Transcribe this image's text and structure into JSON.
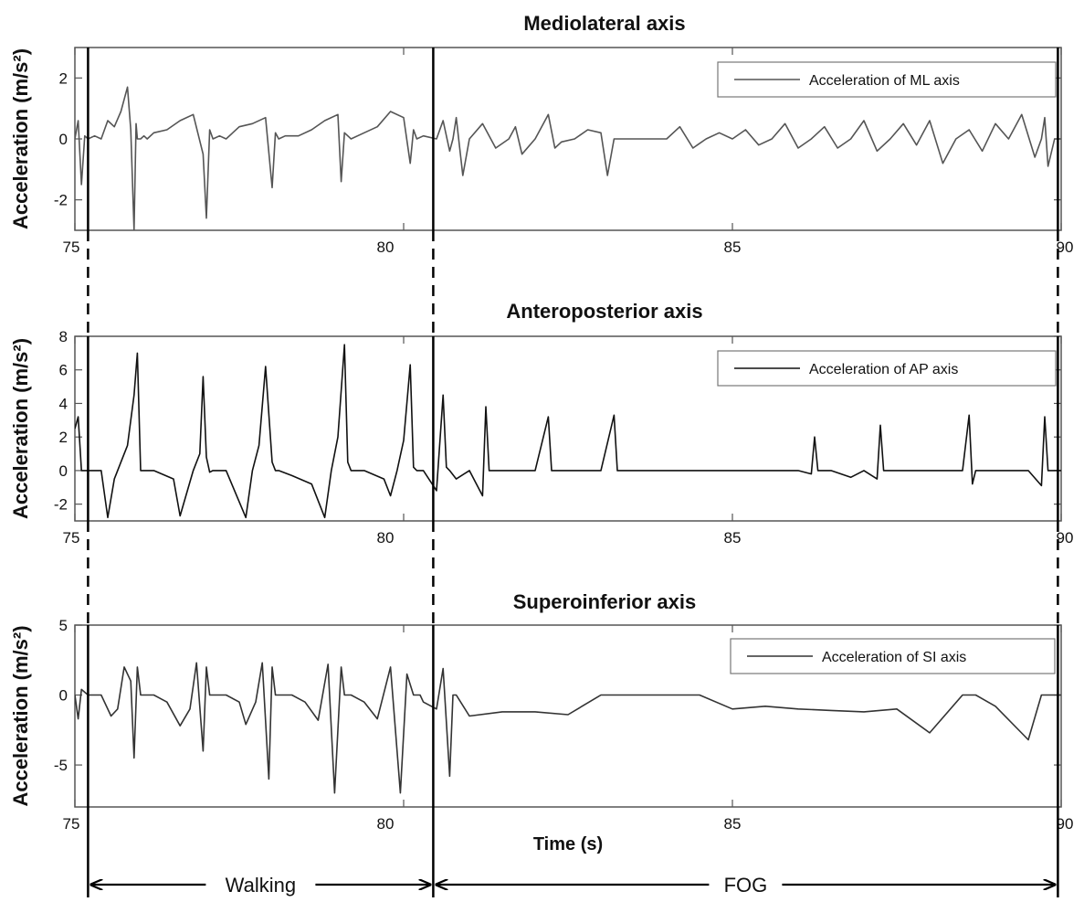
{
  "chart_data": [
    {
      "type": "line",
      "title": "Mediolateral axis",
      "ylabel": "Acceleration (m/s²)",
      "xlim": [
        75,
        90
      ],
      "ylim": [
        -3,
        3
      ],
      "xticks": [
        75,
        80,
        85,
        90
      ],
      "yticks": [
        -2,
        0,
        2
      ],
      "legend": "top-right",
      "series": [
        {
          "name": "Acceleration of ML axis",
          "color": "#555555",
          "x": [
            75.0,
            75.05,
            75.1,
            75.15,
            75.2,
            75.3,
            75.4,
            75.5,
            75.6,
            75.7,
            75.8,
            75.85,
            75.9,
            75.93,
            75.95,
            76.0,
            76.05,
            76.1,
            76.2,
            76.4,
            76.6,
            76.8,
            76.95,
            77.0,
            77.05,
            77.1,
            77.2,
            77.3,
            77.5,
            77.7,
            77.9,
            78.0,
            78.05,
            78.1,
            78.2,
            78.4,
            78.6,
            78.8,
            79.0,
            79.05,
            79.1,
            79.2,
            79.4,
            79.6,
            79.8,
            80.0,
            80.1,
            80.15,
            80.2,
            80.3,
            80.5,
            80.6,
            80.7,
            80.75,
            80.8,
            80.9,
            81.0,
            81.2,
            81.4,
            81.6,
            81.7,
            81.8,
            82.0,
            82.2,
            82.3,
            82.4,
            82.6,
            82.8,
            83.0,
            83.1,
            83.2,
            83.4,
            83.6,
            84.0,
            84.2,
            84.4,
            84.6,
            84.8,
            85.0,
            85.2,
            85.4,
            85.6,
            85.8,
            86.0,
            86.2,
            86.4,
            86.6,
            86.8,
            87.0,
            87.2,
            87.4,
            87.6,
            87.8,
            88.0,
            88.2,
            88.4,
            88.6,
            88.8,
            89.0,
            89.2,
            89.4,
            89.6,
            89.7,
            89.75,
            89.8,
            89.9,
            90.0
          ],
          "y": [
            0,
            0.6,
            -1.5,
            0.1,
            0,
            0.1,
            0,
            0.6,
            0.4,
            0.9,
            1.7,
            0.3,
            -3.0,
            0.5,
            0,
            0,
            0.1,
            0,
            0.2,
            0.3,
            0.6,
            0.8,
            -0.5,
            -2.6,
            0.3,
            0,
            0.1,
            0,
            0.4,
            0.5,
            0.7,
            -1.6,
            0.2,
            0,
            0.1,
            0.1,
            0.3,
            0.6,
            0.8,
            -1.4,
            0.2,
            0,
            0.2,
            0.4,
            0.9,
            0.7,
            -0.8,
            0.3,
            0,
            0.1,
            0,
            0.6,
            -0.4,
            0,
            0.7,
            -1.2,
            0,
            0.5,
            -0.3,
            0,
            0.4,
            -0.5,
            0,
            0.8,
            -0.3,
            -0.1,
            0,
            0.3,
            0.2,
            -1.2,
            0,
            0,
            0,
            0,
            0.4,
            -0.3,
            0,
            0.2,
            0,
            0.3,
            -0.2,
            0,
            0.5,
            -0.3,
            0,
            0.4,
            -0.3,
            0,
            0.6,
            -0.4,
            0,
            0.5,
            -0.2,
            0.6,
            -0.8,
            0,
            0.3,
            -0.4,
            0.5,
            0,
            0.8,
            -0.6,
            0,
            0.7,
            -0.9,
            0,
            0
          ]
        }
      ]
    },
    {
      "type": "line",
      "title": "Anteroposterior axis",
      "ylabel": "Acceleration (m/s²)",
      "xlim": [
        75,
        90
      ],
      "ylim": [
        -3,
        8
      ],
      "xticks": [
        75,
        80,
        85,
        90
      ],
      "yticks": [
        -2,
        0,
        2,
        4,
        6,
        8
      ],
      "legend": "top-right",
      "series": [
        {
          "name": "Acceleration of AP axis",
          "color": "#111111",
          "x": [
            75.0,
            75.05,
            75.1,
            75.2,
            75.4,
            75.5,
            75.6,
            75.7,
            75.8,
            75.85,
            75.9,
            75.95,
            76.0,
            76.2,
            76.5,
            76.6,
            76.8,
            76.9,
            76.95,
            77.0,
            77.05,
            77.1,
            77.3,
            77.6,
            77.7,
            77.8,
            77.9,
            78.0,
            78.05,
            78.1,
            78.3,
            78.6,
            78.8,
            78.9,
            79.0,
            79.1,
            79.15,
            79.2,
            79.4,
            79.7,
            79.8,
            79.9,
            80.0,
            80.1,
            80.15,
            80.2,
            80.3,
            80.5,
            80.6,
            80.65,
            80.7,
            80.8,
            81.0,
            81.2,
            81.25,
            81.3,
            81.5,
            82.0,
            82.2,
            82.25,
            82.3,
            82.5,
            83.0,
            83.2,
            83.25,
            83.3,
            83.5,
            84.0,
            84.5,
            85.0,
            85.5,
            86.0,
            86.2,
            86.25,
            86.3,
            86.5,
            86.8,
            87.0,
            87.2,
            87.25,
            87.3,
            87.5,
            88.0,
            88.5,
            88.6,
            88.65,
            88.7,
            89.0,
            89.5,
            89.7,
            89.75,
            89.8,
            90.0
          ],
          "y": [
            2.5,
            3.2,
            0,
            0,
            0,
            -2.8,
            -0.5,
            0.5,
            1.5,
            3.0,
            4.5,
            7.0,
            0,
            0,
            -0.5,
            -2.7,
            0,
            1.0,
            5.6,
            0.8,
            -0.1,
            0,
            0,
            -2.8,
            0,
            1.5,
            6.2,
            0.5,
            0,
            0,
            -0.3,
            -0.8,
            -2.8,
            0,
            2.0,
            7.5,
            0.5,
            0,
            0,
            -0.5,
            -1.5,
            0,
            1.8,
            6.3,
            0.2,
            0,
            0,
            -1.2,
            4.5,
            0.2,
            0,
            -0.5,
            0,
            -1.5,
            3.8,
            0,
            0,
            0,
            3.2,
            0,
            0,
            0,
            0,
            3.3,
            0,
            0,
            0,
            0,
            0,
            0,
            0,
            0,
            -0.2,
            2.0,
            0,
            0,
            -0.4,
            0,
            -0.5,
            2.7,
            0,
            0,
            0,
            0,
            3.3,
            -0.8,
            0,
            0,
            0,
            -0.9,
            3.2,
            0,
            0
          ]
        }
      ]
    },
    {
      "type": "line",
      "title": "Superoinferior axis",
      "ylabel": "Acceleration (m/s²)",
      "xlabel": "Time (s)",
      "xlim": [
        75,
        90
      ],
      "ylim": [
        -8,
        5
      ],
      "xticks": [
        75,
        80,
        85,
        90
      ],
      "yticks": [
        -5,
        0,
        5
      ],
      "legend": "top-right",
      "series": [
        {
          "name": "Acceleration of SI axis",
          "color": "#333333",
          "x": [
            75.0,
            75.05,
            75.1,
            75.2,
            75.4,
            75.55,
            75.65,
            75.75,
            75.85,
            75.9,
            75.95,
            76.0,
            76.2,
            76.4,
            76.6,
            76.75,
            76.85,
            76.95,
            77.0,
            77.05,
            77.1,
            77.3,
            77.5,
            77.6,
            77.75,
            77.85,
            77.95,
            78.0,
            78.05,
            78.1,
            78.3,
            78.5,
            78.7,
            78.85,
            78.95,
            79.05,
            79.1,
            79.15,
            79.2,
            79.4,
            79.6,
            79.8,
            79.95,
            80.05,
            80.15,
            80.2,
            80.25,
            80.3,
            80.5,
            80.6,
            80.7,
            80.75,
            80.8,
            81.0,
            81.5,
            82.0,
            82.5,
            83.0,
            83.5,
            84.0,
            84.5,
            85.0,
            85.5,
            86.0,
            86.5,
            87.0,
            87.5,
            88.0,
            88.5,
            88.6,
            88.65,
            88.7,
            89.0,
            89.5,
            89.7,
            89.75,
            89.8,
            90.0
          ],
          "y": [
            0,
            -1.7,
            0.4,
            0,
            0,
            -1.5,
            -1.0,
            2.0,
            1.0,
            -4.5,
            2.0,
            0,
            0,
            -0.5,
            -2.2,
            -1.0,
            2.3,
            -4.0,
            2.0,
            0,
            0,
            0,
            -0.5,
            -2.1,
            -0.5,
            2.3,
            -6.0,
            2.0,
            0,
            0,
            0,
            -0.5,
            -1.8,
            2.2,
            -7.0,
            2.0,
            0,
            0,
            0,
            -0.5,
            -1.7,
            2.0,
            -7.0,
            1.5,
            0,
            0,
            0,
            -0.5,
            -1.0,
            1.9,
            -5.8,
            0,
            0,
            -1.5,
            -1.2,
            -1.2,
            -1.4,
            0,
            0,
            0,
            0,
            -1.0,
            -0.8,
            -1.0,
            -1.1,
            -1.2,
            -1.0,
            -2.7,
            0,
            0,
            0,
            0,
            -0.8,
            -3.2,
            0,
            0,
            0,
            0
          ]
        }
      ]
    }
  ],
  "annotations": {
    "walking": "Walking",
    "fog": "FOG",
    "boundaries": [
      75.2,
      80.45,
      89.95
    ]
  }
}
